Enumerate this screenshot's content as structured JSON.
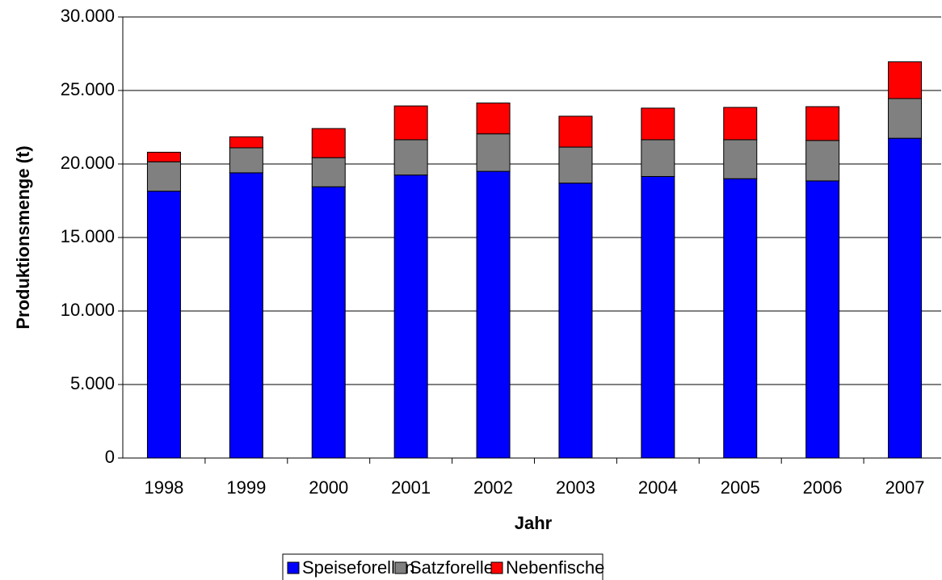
{
  "chart_data": {
    "type": "stacked-bar",
    "x_label": "Jahr",
    "y_label": "Produktionsmenge (t)",
    "categories": [
      "1998",
      "1999",
      "2000",
      "2001",
      "2002",
      "2003",
      "2004",
      "2005",
      "2006",
      "2007"
    ],
    "series": [
      {
        "name": "Speiseforellen",
        "color": "#0000ff",
        "values": [
          18150,
          19400,
          18450,
          19250,
          19500,
          18700,
          19150,
          19000,
          18850,
          21750
        ]
      },
      {
        "name": "Satzforellen",
        "color": "#808080",
        "values": [
          2000,
          1700,
          1980,
          2400,
          2550,
          2450,
          2500,
          2650,
          2750,
          2700
        ]
      },
      {
        "name": "Nebenfische",
        "color": "#ff0000",
        "values": [
          650,
          750,
          1980,
          2300,
          2100,
          2100,
          2150,
          2200,
          2300,
          2500
        ]
      }
    ],
    "ylim": [
      0,
      30000
    ],
    "yticks": [
      0,
      {
        "value": 5000,
        "label": "5.000"
      },
      {
        "value": 10000,
        "label": "10.000"
      },
      {
        "value": 15000,
        "label": "15.000"
      },
      {
        "value": 20000,
        "label": "20.000"
      },
      {
        "value": 25000,
        "label": "25.000"
      },
      {
        "value": 30000,
        "label": "30.000"
      }
    ],
    "grid": true,
    "legend": "bottom"
  }
}
